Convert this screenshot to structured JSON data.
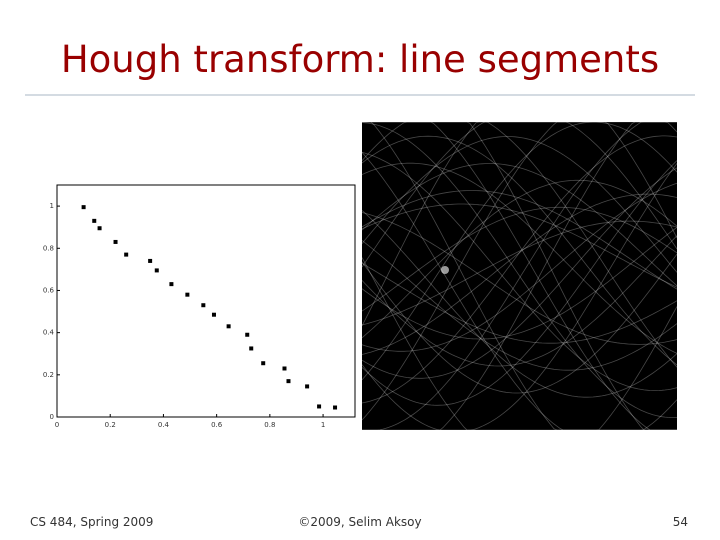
{
  "slide": {
    "title": "Hough transform: line segments",
    "footer_left": "CS 484, Spring 2009",
    "footer_center": "©2009, Selim Aksoy",
    "page_number": "54"
  },
  "chart_data": {
    "type": "scatter",
    "x": [
      0.1,
      0.14,
      0.16,
      0.22,
      0.26,
      0.35,
      0.375,
      0.43,
      0.49,
      0.55,
      0.59,
      0.645,
      0.715,
      0.73,
      0.775,
      0.855,
      0.87,
      0.94,
      0.985,
      1.045
    ],
    "values": [
      0.995,
      0.93,
      0.895,
      0.83,
      0.77,
      0.74,
      0.695,
      0.63,
      0.58,
      0.53,
      0.485,
      0.43,
      0.39,
      0.325,
      0.255,
      0.23,
      0.17,
      0.145,
      0.05,
      0.045
    ],
    "color": "#000000",
    "xlim": [
      0,
      1.12
    ],
    "ylim": [
      0,
      1.1
    ],
    "xticks": [
      0,
      0.2,
      0.4,
      0.6,
      0.8,
      1
    ],
    "yticks": [
      0,
      0.2,
      0.4,
      0.6,
      0.8,
      1
    ]
  }
}
